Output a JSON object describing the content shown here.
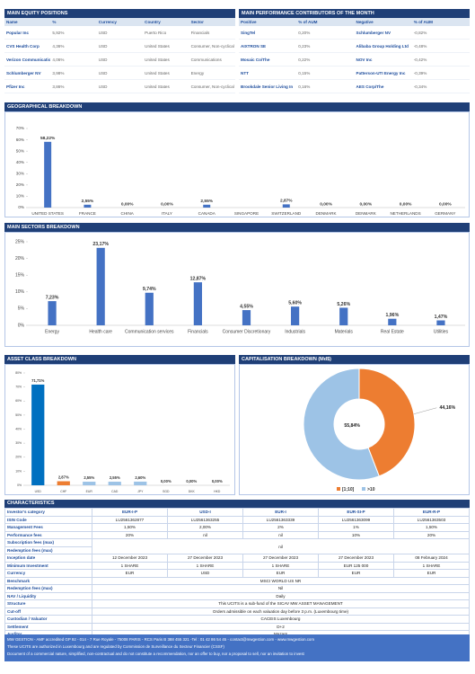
{
  "equity_positions": {
    "title": "MAIN EQUITY POSITIONS",
    "columns": [
      "Name",
      "%",
      "Currency",
      "Country",
      "Sector"
    ],
    "rows": [
      [
        "Popular Inc",
        "5,92%",
        "USD",
        "Puerto Rico",
        "Financials"
      ],
      [
        "CVS Health Corp",
        "4,36%",
        "USD",
        "United States",
        "Consumer, Non-cyclical"
      ],
      [
        "Verizon Communications Inc",
        "4,06%",
        "USD",
        "United States",
        "Communications"
      ],
      [
        "Schlumberger NV",
        "3,98%",
        "USD",
        "United States",
        "Energy"
      ],
      [
        "Pfizer Inc",
        "3,86%",
        "USD",
        "United States",
        "Consumer, Non-cyclical"
      ]
    ]
  },
  "contributors": {
    "title": "MAIN PERFORMANCE CONTRIBUTORS OF THE MONTH",
    "columns": [
      "Positive",
      "% of AUM",
      "Negative",
      "% of AUM"
    ],
    "rows": [
      [
        "SingTel",
        "0,20%",
        "Schlumberger NV",
        "-0,82%"
      ],
      [
        "AIXTRON SE",
        "0,23%",
        "Alibaba Group Holding Ltd",
        "-0,48%"
      ],
      [
        "Mosaic Co/The",
        "0,22%",
        "NOV Inc",
        "-0,42%"
      ],
      [
        "NTT",
        "0,15%",
        "Patterson-UTI Energy Inc",
        "-0,39%"
      ],
      [
        "Brookdale Senior Living In",
        "0,16%",
        "AES Corp/The",
        "-0,34%"
      ]
    ]
  },
  "chart_data": [
    {
      "type": "bar",
      "title": "GEOGRAPHICAL BREAKDOWN",
      "categories": [
        "UNITED STATES",
        "FRANCE",
        "CHINA",
        "ITALY",
        "CANADA",
        "SINGAPORE",
        "SWITZERLAND",
        "DENMARK",
        "DENMARK",
        "NETHERLANDS",
        "GERMANY"
      ],
      "values": [
        58.22,
        2.55,
        0,
        0,
        2.55,
        null,
        2.87,
        0,
        0,
        0,
        0
      ],
      "value_labels": [
        "58,22%",
        "2,55%",
        "0,00%",
        "0,00%",
        "2,55%",
        null,
        "2,87%",
        "0,00%",
        "0,00%",
        "0,00%",
        "0,00%"
      ],
      "color": "#4472c4",
      "ylim": [
        0,
        70
      ],
      "yticks": [
        {
          "value": 0,
          "label": "0%"
        },
        {
          "value": 10,
          "label": "10%"
        },
        {
          "value": 20,
          "label": "20%"
        },
        {
          "value": 30,
          "label": "30%"
        },
        {
          "value": 40,
          "label": "40%"
        },
        {
          "value": 50,
          "label": "50%"
        },
        {
          "value": 60,
          "label": "60%"
        },
        {
          "value": 70,
          "label": "70%"
        }
      ]
    },
    {
      "type": "bar",
      "title": "MAIN SECTORS BREAKDOWN",
      "categories": [
        "Energy",
        "Health care",
        "Communication services",
        "Financials",
        "Consumer Discretionary",
        "Industrials",
        "Materials",
        "Real Estate",
        "Utilities"
      ],
      "values": [
        7.23,
        23.17,
        9.74,
        12.87,
        4.55,
        5.6,
        5.26,
        1.96,
        1.47
      ],
      "value_labels": [
        "7,23%",
        "23,17%",
        "9,74%",
        "12,87%",
        "4,55%",
        "5,60%",
        "5,26%",
        "1,96%",
        "1,47%"
      ],
      "color": "#4472c4",
      "ylim": [
        0,
        25
      ],
      "yticks": [
        {
          "value": 0,
          "label": "0%"
        },
        {
          "value": 5,
          "label": "5%"
        },
        {
          "value": 10,
          "label": "10%"
        },
        {
          "value": 15,
          "label": "15%"
        },
        {
          "value": 20,
          "label": "20%"
        },
        {
          "value": 25,
          "label": "25%"
        }
      ]
    },
    {
      "type": "bar",
      "title": "ASSET CLASS BREAKDOWN",
      "categories": [
        "USD",
        "CHF",
        "EUR",
        "CAD",
        "JPY",
        "SGD",
        "DKK",
        "HKD"
      ],
      "values": [
        71.71,
        2.87,
        2.55,
        2.55,
        2.6,
        0,
        0,
        0
      ],
      "value_labels": [
        "71,71%",
        "2,87%",
        "2,55%",
        "2,55%",
        "2,60%",
        "0,00%",
        "0,00%",
        "0,00%"
      ],
      "colors": [
        "#0070c0",
        "#ed7d31",
        "#9dc3e6",
        "#9dc3e6",
        "#9dc3e6",
        "#9dc3e6",
        "#9dc3e6",
        "#9dc3e6"
      ],
      "ylim": [
        0,
        80
      ],
      "yticks": [
        {
          "value": 0,
          "label": "0%"
        },
        {
          "value": 10,
          "label": "10%"
        },
        {
          "value": 20,
          "label": "20%"
        },
        {
          "value": 30,
          "label": "30%"
        },
        {
          "value": 40,
          "label": "40%"
        },
        {
          "value": 50,
          "label": "50%"
        },
        {
          "value": 60,
          "label": "60%"
        },
        {
          "value": 70,
          "label": "70%"
        },
        {
          "value": 80,
          "label": "80%"
        }
      ]
    },
    {
      "type": "pie",
      "title": "CAPITALISATION BREAKDOWN (Md$)",
      "categories": [
        "[1;10]",
        ">10"
      ],
      "values": [
        44.16,
        55.84
      ],
      "value_labels": [
        "44,16%",
        "55,84%"
      ],
      "colors": [
        "#ed7d31",
        "#9dc3e6"
      ]
    }
  ],
  "characteristics": {
    "title": "CHARACTERISTICS",
    "rows": [
      {
        "label": "Investor's category",
        "cells": [
          "EUR-I-P",
          "USD-I",
          "EUR-I",
          "EUR-SI-P",
          "EUR-R-P"
        ]
      },
      {
        "label": "ISIN Code",
        "cells": [
          "LU2561362877",
          "LU2561363255",
          "LU2561363339",
          "LU2561363099",
          "LU2561363503"
        ]
      },
      {
        "label": "Management Fees",
        "cells": [
          "1,50%",
          "2,00%",
          "2%",
          "1%",
          "1,50%"
        ]
      },
      {
        "label": "Performance fees",
        "cells": [
          "20%",
          "nil",
          "nil",
          "10%",
          "20%"
        ]
      },
      {
        "label": "Subscription fees (max)",
        "cells": [
          "nil"
        ]
      },
      {
        "label": "Redemption fees (max)",
        "cells": []
      },
      {
        "label": "Inception date",
        "cells": [
          "12 December 2023",
          "27 December 2023",
          "27 December 2023",
          "27 December 2023",
          "08 February 2024"
        ]
      },
      {
        "label": "Minimum Investment",
        "cells": [
          "1 SHARE",
          "1 SHARE",
          "1 SHARE",
          "EUR 125 000",
          "1 SHARE"
        ]
      },
      {
        "label": "Currency",
        "cells": [
          "EUR",
          "USD",
          "EUR",
          "EUR",
          "EUR"
        ]
      },
      {
        "label": "Benchmark",
        "cells": [
          "MSCI WORLD US NR"
        ]
      },
      {
        "label": "Redemption fees (max)",
        "cells": [
          "Nil"
        ]
      },
      {
        "label": "NAV / Liquidity",
        "cells": [
          "Daily"
        ]
      },
      {
        "label": "Structure",
        "cells": [
          "This UCITS is a sub-fund of the SICAV MW ASSET MANAGEMENT"
        ]
      },
      {
        "label": "Cut-off",
        "cells": [
          "Orders admissible on each valuation day before 3 p.m. (Luxembourg time)"
        ]
      },
      {
        "label": "Custodian / Valuator",
        "cells": [
          "CACEIS Luxembourg"
        ]
      },
      {
        "label": "Settlement",
        "cells": [
          "D+2"
        ]
      },
      {
        "label": "Auditor",
        "cells": [
          "Mazars"
        ]
      }
    ]
  },
  "footer": [
    "MW GESTION - AMF accredited GP 92 - 014 - 7 Rue Royale - 75008 PARIS - RCS Paris B 388 455 321 -Tel : 01 42 86 54 45 - contact@mwgestion.com - www.mwgestion.com",
    "These UCITS are authorized in Luxembourg and are regulated by Commission de Surveillance du Secteur Financier (CSSF)",
    "Document of a commercial nature, simplified, non-contractual and do not constitute a recommendation, nor an offer to buy, nor a proposal to sell, nor an invitation to invest"
  ]
}
